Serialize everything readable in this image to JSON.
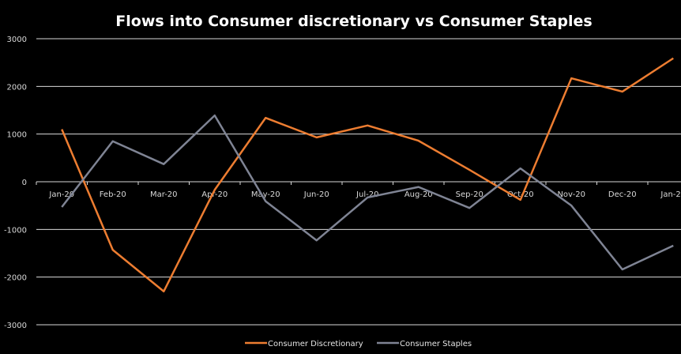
{
  "chart_data": {
    "type": "line",
    "title": "Flows into Consumer discretionary vs Consumer Staples",
    "xlabel": "",
    "ylabel": "",
    "categories": [
      "Jan-20",
      "Feb-20",
      "Mar-20",
      "Apr-20",
      "May-20",
      "Jun-20",
      "Jul-20",
      "Aug-20",
      "Sep-20",
      "Oct-20",
      "Nov-20",
      "Dec-20",
      "Jan-21"
    ],
    "ylim": [
      -3000,
      3000
    ],
    "yticks": [
      3000,
      2000,
      1000,
      0,
      -1000,
      -2000,
      -3000
    ],
    "grid": true,
    "legend_position": "bottom",
    "background": "#000000",
    "series": [
      {
        "name": "Consumer Discretionary",
        "color": "#ED7D31",
        "values": [
          1100,
          -1430,
          -2300,
          -170,
          1340,
          930,
          1180,
          860,
          250,
          -380,
          2170,
          1890,
          2590
        ]
      },
      {
        "name": "Consumer Staples",
        "color": "#7F8494",
        "values": [
          -530,
          850,
          370,
          1390,
          -410,
          -1230,
          -330,
          -110,
          -550,
          280,
          -500,
          -1840,
          -1340
        ]
      }
    ]
  }
}
